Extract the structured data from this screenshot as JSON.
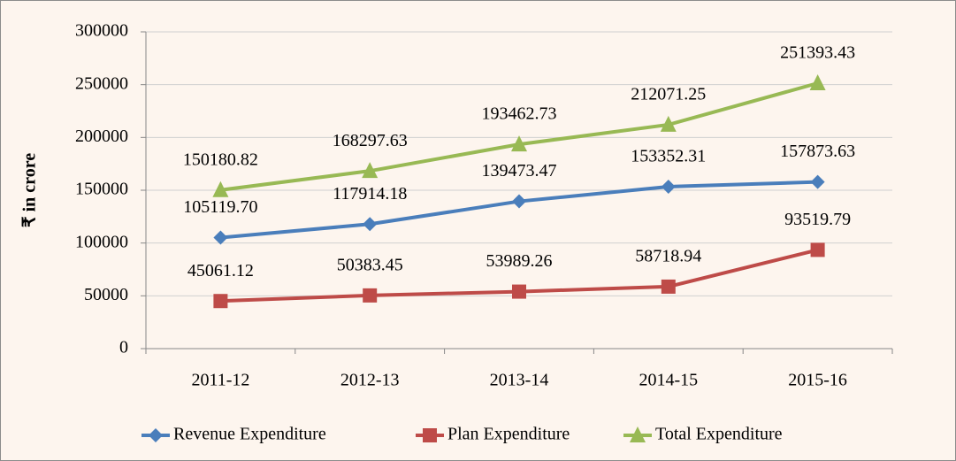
{
  "chart_data": {
    "type": "line",
    "y_label": "₹ in crore",
    "categories": [
      "2011-12",
      "2012-13",
      "2013-14",
      "2014-15",
      "2015-16"
    ],
    "series": [
      {
        "name": "Revenue Expenditure",
        "color": "#4a7ebb",
        "marker": "diamond",
        "values": [
          105119.7,
          117914.18,
          139473.47,
          153352.31,
          157873.63
        ],
        "value_labels": [
          "105119.70",
          "117914.18",
          "139473.47",
          "153352.31",
          "157873.63"
        ]
      },
      {
        "name": "Plan Expenditure",
        "color": "#be4b48",
        "marker": "square",
        "values": [
          45061.12,
          50383.45,
          53989.26,
          58718.94,
          93519.79
        ],
        "value_labels": [
          "45061.12",
          "50383.45",
          "53989.26",
          "58718.94",
          "93519.79"
        ]
      },
      {
        "name": "Total Expenditure",
        "color": "#98b954",
        "marker": "triangle",
        "values": [
          150180.82,
          168297.63,
          193462.73,
          212071.25,
          251393.43
        ],
        "value_labels": [
          "150180.82",
          "168297.63",
          "193462.73",
          "212071.25",
          "251393.43"
        ]
      }
    ],
    "ylim": [
      0,
      300000
    ],
    "yticks": [
      0,
      50000,
      100000,
      150000,
      200000,
      250000,
      300000
    ],
    "grid": true,
    "legend": "bottom"
  }
}
